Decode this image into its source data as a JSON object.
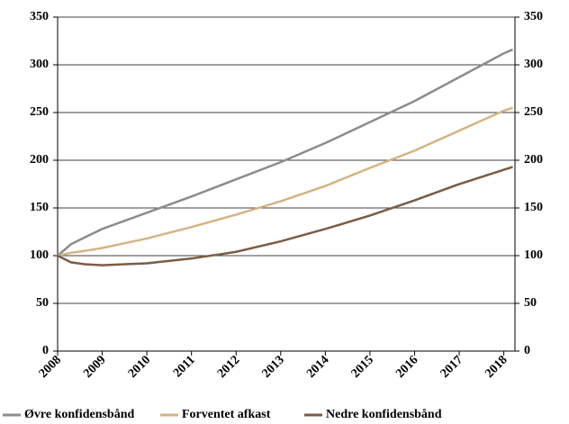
{
  "chart_data": {
    "type": "line",
    "x": [
      2008,
      2008.3,
      2008.6,
      2009,
      2010,
      2011,
      2012,
      2013,
      2014,
      2015,
      2016,
      2017,
      2018,
      2018.2
    ],
    "series": [
      {
        "name": "Øvre konfidensbånd",
        "color": "#8c8c8c",
        "values": [
          100,
          112,
          119,
          128,
          145,
          162,
          180,
          198,
          218,
          240,
          262,
          287,
          312,
          316
        ]
      },
      {
        "name": "Forventet afkast",
        "color": "#d4b483",
        "values": [
          100,
          103,
          105,
          108,
          118,
          130,
          143,
          157,
          173,
          192,
          210,
          231,
          252,
          255
        ]
      },
      {
        "name": "Nedre konfidensbånd",
        "color": "#7b5c45",
        "values": [
          100,
          93,
          91,
          90,
          92,
          97,
          104,
          115,
          128,
          142,
          158,
          175,
          190,
          193
        ]
      }
    ],
    "xlim": [
      2008,
      2018.25
    ],
    "xticks": [
      2008,
      2009,
      2010,
      2011,
      2012,
      2013,
      2014,
      2015,
      2016,
      2017,
      2018
    ],
    "ylim": [
      0,
      350
    ],
    "yticks": [
      0,
      50,
      100,
      150,
      200,
      250,
      300,
      350
    ],
    "y2lim": [
      0,
      350
    ],
    "y2ticks": [
      0,
      50,
      100,
      150,
      200,
      250,
      300,
      350
    ],
    "grid": true,
    "legend": "bottom"
  }
}
